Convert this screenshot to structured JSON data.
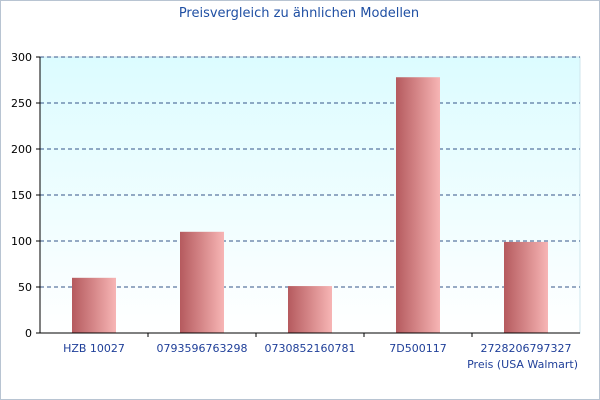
{
  "chart_data": {
    "type": "bar",
    "title": "Preisvergleich zu ähnlichen Modellen",
    "xlabel": "Preis (USA Walmart)",
    "ylabel": "",
    "categories": [
      "HZB 10027",
      "0793596763298",
      "0730852160781",
      "7D500117",
      "2728206797327"
    ],
    "values": [
      60,
      110,
      51,
      278,
      99
    ],
    "ylim": [
      0,
      300
    ],
    "yticks": [
      0,
      50,
      100,
      150,
      200,
      250,
      300
    ],
    "grid": true,
    "colors": {
      "plot_bg_top": "#dcfcff",
      "plot_bg_bottom": "#ffffff",
      "bar_dark": "#b55a5e",
      "bar_light": "#f7b5b5",
      "grid": "#35558a",
      "title": "#1f4fa3"
    }
  }
}
